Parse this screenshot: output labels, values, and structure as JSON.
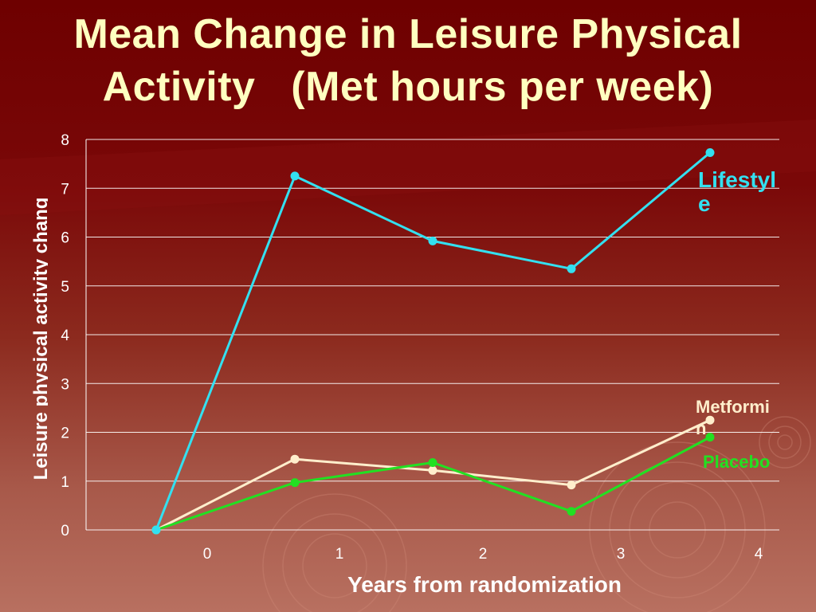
{
  "title_line1": "Mean Change in Leisure Physical",
  "title_line2": "Activity   (Met hours per week)",
  "colors": {
    "lifestyle": "#33e0f0",
    "metformin": "#ffeecc",
    "placebo": "#22e022",
    "title": "#ffffc0"
  },
  "chart_data": {
    "type": "line",
    "title": "Mean Change in Leisure Physical Activity   (Met hours per week)",
    "xlabel": "Years from randomization",
    "ylabel": "Leisure physical activity chang",
    "x_tick_labels": [
      "0",
      "1",
      "2",
      "3",
      "4"
    ],
    "y_tick_labels": [
      "0",
      "1",
      "2",
      "3",
      "4",
      "5",
      "6",
      "7",
      "8"
    ],
    "ylim": [
      0,
      8
    ],
    "x": [
      0,
      1,
      2,
      3,
      4
    ],
    "grid": true,
    "series": [
      {
        "name": "Lifestyle",
        "label_lines": [
          "Lifestyl",
          "e"
        ],
        "values": [
          0,
          7.25,
          5.92,
          5.35,
          7.73
        ]
      },
      {
        "name": "Metformin",
        "label_lines": [
          "Metformi",
          "n"
        ],
        "values": [
          0,
          1.45,
          1.22,
          0.92,
          2.25
        ]
      },
      {
        "name": "Placebo",
        "label_lines": [
          "Placebo"
        ],
        "values": [
          0,
          0.97,
          1.38,
          0.38,
          1.9
        ]
      }
    ]
  }
}
